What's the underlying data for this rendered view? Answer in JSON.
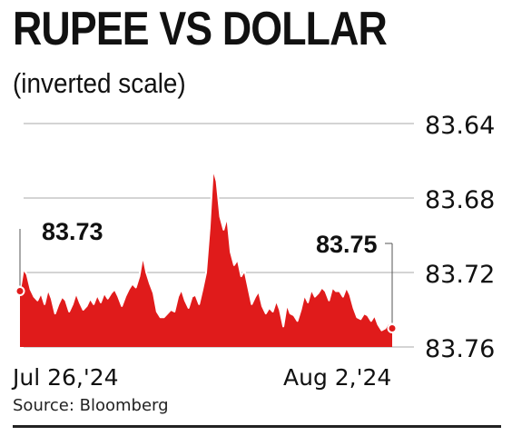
{
  "title": "RUPEE VS DOLLAR",
  "subtitle": "(inverted scale)",
  "source": "Source: Bloomberg",
  "colors": {
    "area": "#e01b1b",
    "line": "#ffffff",
    "grid": "#a8a8a8",
    "text": "#111111"
  },
  "chart_data": {
    "type": "area",
    "title": "RUPEE VS DOLLAR",
    "subtitle": "(inverted scale)",
    "y_inverted": true,
    "ylim": [
      83.64,
      83.76
    ],
    "y_ticks": [
      "83.64",
      "83.68",
      "83.72",
      "83.76"
    ],
    "x_tick_labels": [
      "Jul 26,'24",
      "Aug 2,'24"
    ],
    "grid": "horizontal",
    "annotations": [
      {
        "label": "83.73",
        "value": 83.73,
        "at": "start"
      },
      {
        "label": "83.75",
        "value": 83.75,
        "at": "end"
      }
    ],
    "values": [
      83.73,
      83.718,
      83.721,
      83.729,
      83.733,
      83.735,
      83.731,
      83.737,
      83.729,
      83.734,
      83.742,
      83.737,
      83.733,
      83.735,
      83.741,
      83.737,
      83.731,
      83.736,
      83.74,
      83.738,
      83.734,
      83.737,
      83.732,
      83.736,
      83.731,
      83.734,
      83.731,
      83.729,
      83.733,
      83.738,
      83.733,
      83.729,
      83.726,
      83.728,
      83.722,
      83.711,
      83.72,
      83.726,
      83.731,
      83.741,
      83.744,
      83.744,
      83.742,
      83.74,
      83.741,
      83.733,
      83.729,
      83.735,
      83.739,
      83.733,
      83.732,
      83.737,
      83.729,
      83.72,
      83.696,
      83.664,
      83.671,
      83.69,
      83.697,
      83.69,
      83.709,
      83.716,
      83.713,
      83.722,
      83.719,
      83.728,
      83.737,
      83.733,
      83.73,
      83.738,
      83.742,
      83.739,
      83.741,
      83.735,
      83.74,
      83.749,
      83.737,
      83.742,
      83.743,
      83.746,
      83.74,
      83.732,
      83.736,
      83.729,
      83.733,
      83.731,
      83.728,
      83.73,
      83.735,
      83.728,
      83.73,
      83.73,
      83.733,
      83.728,
      83.732,
      83.739,
      83.744,
      83.745,
      83.742,
      83.743,
      83.746,
      83.743,
      83.748,
      83.751,
      83.75,
      83.747,
      83.75
    ]
  }
}
